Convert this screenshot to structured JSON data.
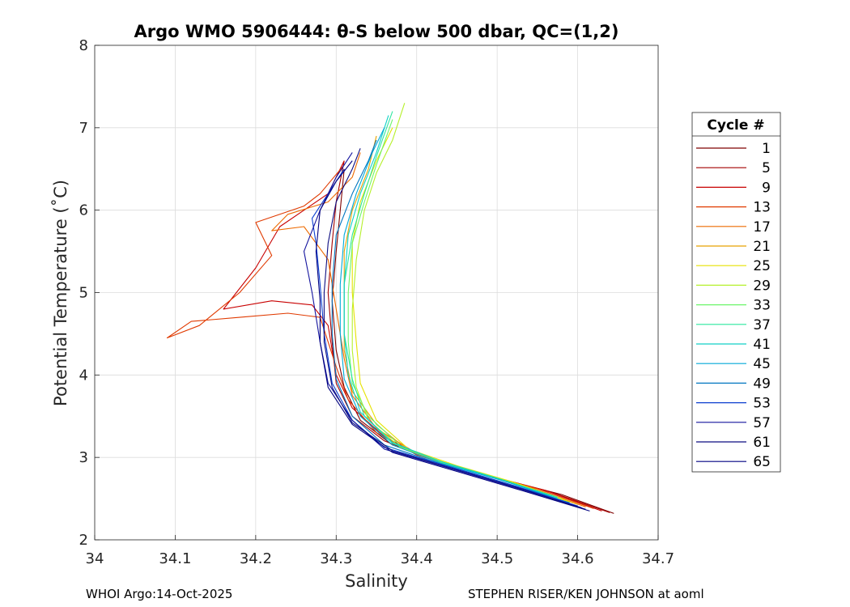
{
  "chart_data": {
    "type": "line",
    "title": "Argo WMO 5906444: θ-S below 500 dbar,  QC=(1,2)",
    "xlabel": "Salinity",
    "ylabel": "Potential Temperature (˚C)",
    "xlim": [
      34.0,
      34.7
    ],
    "ylim": [
      2,
      8
    ],
    "xticks": [
      "34",
      "34.1",
      "34.2",
      "34.3",
      "34.4",
      "34.5",
      "34.6",
      "34.7"
    ],
    "yticks": [
      "2",
      "3",
      "4",
      "5",
      "6",
      "7",
      "8"
    ],
    "grid": true,
    "legend": {
      "title": "Cycle #",
      "placement": "right-outside",
      "entries": [
        "1",
        "5",
        "9",
        "13",
        "17",
        "21",
        "25",
        "29",
        "33",
        "37",
        "41",
        "45",
        "49",
        "53",
        "57",
        "61",
        "65"
      ],
      "colors": [
        "#7f0000",
        "#a30000",
        "#c80000",
        "#e03a00",
        "#ed6a00",
        "#e8a200",
        "#e6e200",
        "#b5f02a",
        "#6cf56a",
        "#2ae79e",
        "#10d1c8",
        "#00a9d8",
        "#0076c0",
        "#0a3ed0",
        "#14149e",
        "#0c0c80",
        "#000080"
      ]
    },
    "series": [
      {
        "name": "1",
        "color": "#7f0000",
        "points": [
          [
            34.645,
            2.32
          ],
          [
            34.58,
            2.55
          ],
          [
            34.5,
            2.75
          ],
          [
            34.43,
            2.95
          ],
          [
            34.37,
            3.15
          ],
          [
            34.33,
            3.45
          ],
          [
            34.31,
            3.85
          ],
          [
            34.3,
            4.3
          ],
          [
            34.295,
            4.9
          ],
          [
            34.3,
            5.5
          ],
          [
            34.305,
            6.0
          ],
          [
            34.31,
            6.5
          ]
        ]
      },
      {
        "name": "5",
        "color": "#a30000",
        "points": [
          [
            34.64,
            2.33
          ],
          [
            34.57,
            2.57
          ],
          [
            34.49,
            2.78
          ],
          [
            34.42,
            2.97
          ],
          [
            34.36,
            3.2
          ],
          [
            34.32,
            3.5
          ],
          [
            34.3,
            3.9
          ],
          [
            34.295,
            4.4
          ],
          [
            34.29,
            5.0
          ],
          [
            34.295,
            5.6
          ],
          [
            34.3,
            6.1
          ],
          [
            34.31,
            6.6
          ]
        ]
      },
      {
        "name": "9",
        "color": "#c80000",
        "points": [
          [
            34.63,
            2.35
          ],
          [
            34.56,
            2.6
          ],
          [
            34.48,
            2.8
          ],
          [
            34.41,
            3.0
          ],
          [
            34.36,
            3.25
          ],
          [
            34.32,
            3.6
          ],
          [
            34.3,
            4.0
          ],
          [
            34.29,
            4.6
          ],
          [
            34.27,
            4.85
          ],
          [
            34.22,
            4.9
          ],
          [
            34.16,
            4.8
          ],
          [
            34.2,
            5.3
          ],
          [
            34.23,
            5.8
          ],
          [
            34.26,
            6.0
          ],
          [
            34.29,
            6.2
          ],
          [
            34.31,
            6.6
          ]
        ]
      },
      {
        "name": "13",
        "color": "#e03a00",
        "points": [
          [
            34.62,
            2.38
          ],
          [
            34.55,
            2.62
          ],
          [
            34.47,
            2.83
          ],
          [
            34.4,
            3.03
          ],
          [
            34.35,
            3.3
          ],
          [
            34.315,
            3.7
          ],
          [
            34.3,
            4.1
          ],
          [
            34.28,
            4.7
          ],
          [
            34.24,
            4.75
          ],
          [
            34.18,
            4.7
          ],
          [
            34.12,
            4.65
          ],
          [
            34.09,
            4.45
          ],
          [
            34.13,
            4.6
          ],
          [
            34.18,
            5.0
          ],
          [
            34.22,
            5.45
          ],
          [
            34.2,
            5.85
          ],
          [
            34.26,
            6.05
          ],
          [
            34.28,
            6.2
          ],
          [
            34.31,
            6.55
          ]
        ]
      },
      {
        "name": "17",
        "color": "#ed6a00",
        "points": [
          [
            34.61,
            2.4
          ],
          [
            34.54,
            2.64
          ],
          [
            34.46,
            2.85
          ],
          [
            34.4,
            3.05
          ],
          [
            34.35,
            3.35
          ],
          [
            34.32,
            3.75
          ],
          [
            34.31,
            4.2
          ],
          [
            34.3,
            4.8
          ],
          [
            34.29,
            5.4
          ],
          [
            34.26,
            5.8
          ],
          [
            34.22,
            5.75
          ],
          [
            34.24,
            5.95
          ],
          [
            34.29,
            6.1
          ],
          [
            34.32,
            6.4
          ],
          [
            34.33,
            6.7
          ]
        ]
      },
      {
        "name": "21",
        "color": "#e8a200",
        "points": [
          [
            34.6,
            2.43
          ],
          [
            34.53,
            2.67
          ],
          [
            34.45,
            2.88
          ],
          [
            34.39,
            3.08
          ],
          [
            34.35,
            3.4
          ],
          [
            34.32,
            3.8
          ],
          [
            34.31,
            4.3
          ],
          [
            34.31,
            4.9
          ],
          [
            34.31,
            5.5
          ],
          [
            34.32,
            6.0
          ],
          [
            34.34,
            6.5
          ],
          [
            34.35,
            6.9
          ]
        ]
      },
      {
        "name": "25",
        "color": "#e6e200",
        "points": [
          [
            34.59,
            2.46
          ],
          [
            34.52,
            2.7
          ],
          [
            34.45,
            2.9
          ],
          [
            34.39,
            3.1
          ],
          [
            34.35,
            3.45
          ],
          [
            34.33,
            3.9
          ],
          [
            34.325,
            4.4
          ],
          [
            34.32,
            5.0
          ],
          [
            34.32,
            5.6
          ],
          [
            34.33,
            6.1
          ],
          [
            34.35,
            6.6
          ],
          [
            34.37,
            7.0
          ]
        ]
      },
      {
        "name": "29",
        "color": "#b5f02a",
        "points": [
          [
            34.58,
            2.5
          ],
          [
            34.51,
            2.72
          ],
          [
            34.44,
            2.92
          ],
          [
            34.38,
            3.12
          ],
          [
            34.34,
            3.45
          ],
          [
            34.325,
            3.85
          ],
          [
            34.32,
            4.3
          ],
          [
            34.32,
            4.8
          ],
          [
            34.325,
            5.4
          ],
          [
            34.335,
            6.0
          ],
          [
            34.35,
            6.45
          ],
          [
            34.37,
            6.85
          ],
          [
            34.385,
            7.3
          ]
        ]
      },
      {
        "name": "33",
        "color": "#6cf56a",
        "points": [
          [
            34.575,
            2.52
          ],
          [
            34.5,
            2.74
          ],
          [
            34.43,
            2.94
          ],
          [
            34.38,
            3.14
          ],
          [
            34.34,
            3.5
          ],
          [
            34.32,
            3.9
          ],
          [
            34.315,
            4.4
          ],
          [
            34.315,
            5.0
          ],
          [
            34.32,
            5.6
          ],
          [
            34.335,
            6.1
          ],
          [
            34.35,
            6.55
          ],
          [
            34.37,
            7.1
          ]
        ]
      },
      {
        "name": "37",
        "color": "#2ae79e",
        "points": [
          [
            34.57,
            2.53
          ],
          [
            34.5,
            2.75
          ],
          [
            34.43,
            2.95
          ],
          [
            34.37,
            3.17
          ],
          [
            34.335,
            3.5
          ],
          [
            34.32,
            3.95
          ],
          [
            34.31,
            4.5
          ],
          [
            34.31,
            5.1
          ],
          [
            34.32,
            5.7
          ],
          [
            34.335,
            6.2
          ],
          [
            34.35,
            6.65
          ],
          [
            34.37,
            7.2
          ]
        ]
      },
      {
        "name": "41",
        "color": "#10d1c8",
        "points": [
          [
            34.575,
            2.51
          ],
          [
            34.5,
            2.74
          ],
          [
            34.43,
            2.95
          ],
          [
            34.37,
            3.18
          ],
          [
            34.33,
            3.55
          ],
          [
            34.315,
            4.0
          ],
          [
            34.31,
            4.5
          ],
          [
            34.31,
            5.1
          ],
          [
            34.315,
            5.7
          ],
          [
            34.33,
            6.2
          ],
          [
            34.35,
            6.7
          ],
          [
            34.365,
            7.15
          ]
        ]
      },
      {
        "name": "45",
        "color": "#00a9d8",
        "points": [
          [
            34.58,
            2.48
          ],
          [
            34.51,
            2.71
          ],
          [
            34.43,
            2.93
          ],
          [
            34.37,
            3.15
          ],
          [
            34.33,
            3.5
          ],
          [
            34.31,
            3.95
          ],
          [
            34.305,
            4.5
          ],
          [
            34.305,
            5.1
          ],
          [
            34.31,
            5.7
          ],
          [
            34.325,
            6.2
          ],
          [
            34.345,
            6.7
          ],
          [
            34.36,
            7.0
          ]
        ]
      },
      {
        "name": "49",
        "color": "#0076c0",
        "points": [
          [
            34.59,
            2.45
          ],
          [
            34.51,
            2.69
          ],
          [
            34.43,
            2.92
          ],
          [
            34.36,
            3.15
          ],
          [
            34.32,
            3.5
          ],
          [
            34.3,
            3.95
          ],
          [
            34.295,
            4.5
          ],
          [
            34.295,
            5.1
          ],
          [
            34.3,
            5.7
          ],
          [
            34.32,
            6.2
          ],
          [
            34.34,
            6.6
          ],
          [
            34.35,
            6.85
          ]
        ]
      },
      {
        "name": "53",
        "color": "#0a3ed0",
        "points": [
          [
            34.6,
            2.41
          ],
          [
            34.52,
            2.66
          ],
          [
            34.44,
            2.89
          ],
          [
            34.36,
            3.12
          ],
          [
            34.32,
            3.45
          ],
          [
            34.295,
            3.9
          ],
          [
            34.285,
            4.5
          ],
          [
            34.28,
            5.1
          ],
          [
            34.275,
            5.6
          ],
          [
            34.27,
            5.9
          ],
          [
            34.29,
            6.2
          ],
          [
            34.31,
            6.5
          ]
        ]
      },
      {
        "name": "57",
        "color": "#14149e",
        "points": [
          [
            34.605,
            2.39
          ],
          [
            34.52,
            2.64
          ],
          [
            34.44,
            2.87
          ],
          [
            34.36,
            3.1
          ],
          [
            34.32,
            3.45
          ],
          [
            34.29,
            3.9
          ],
          [
            34.28,
            4.4
          ],
          [
            34.27,
            5.0
          ],
          [
            34.26,
            5.5
          ],
          [
            34.28,
            6.0
          ],
          [
            34.3,
            6.4
          ],
          [
            34.32,
            6.7
          ]
        ]
      },
      {
        "name": "61",
        "color": "#0c0c80",
        "points": [
          [
            34.61,
            2.37
          ],
          [
            34.53,
            2.62
          ],
          [
            34.45,
            2.85
          ],
          [
            34.37,
            3.08
          ],
          [
            34.32,
            3.42
          ],
          [
            34.295,
            3.85
          ],
          [
            34.285,
            4.4
          ],
          [
            34.285,
            5.0
          ],
          [
            34.29,
            5.6
          ],
          [
            34.3,
            6.1
          ],
          [
            34.32,
            6.5
          ],
          [
            34.33,
            6.75
          ]
        ]
      },
      {
        "name": "65",
        "color": "#000080",
        "points": [
          [
            34.615,
            2.35
          ],
          [
            34.53,
            2.6
          ],
          [
            34.45,
            2.83
          ],
          [
            34.37,
            3.06
          ],
          [
            34.32,
            3.4
          ],
          [
            34.29,
            3.85
          ],
          [
            34.28,
            4.4
          ],
          [
            34.28,
            4.9
          ],
          [
            34.275,
            5.5
          ],
          [
            34.28,
            6.0
          ],
          [
            34.3,
            6.35
          ],
          [
            34.32,
            6.6
          ]
        ]
      }
    ]
  },
  "footer": {
    "left": "WHOI Argo:14-Oct-2025",
    "right": "STEPHEN RISER/KEN JOHNSON at aoml"
  }
}
